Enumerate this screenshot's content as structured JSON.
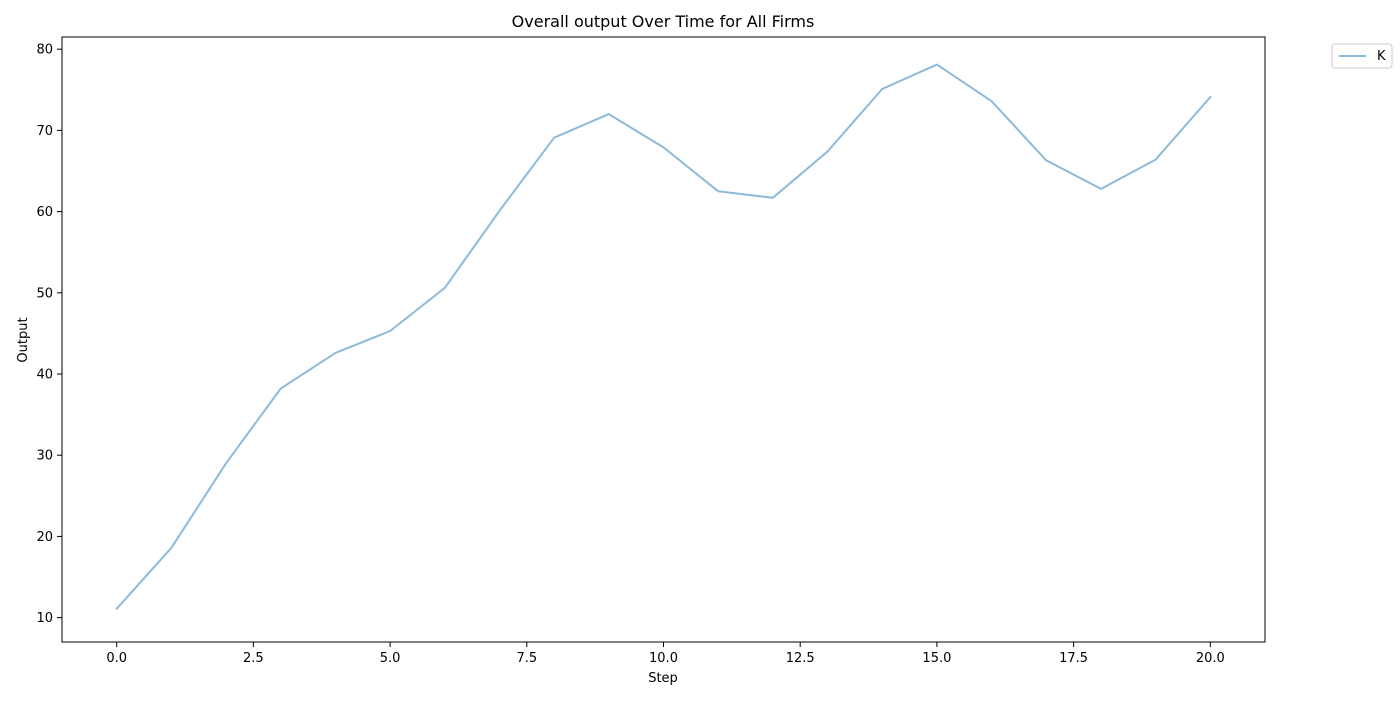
{
  "chart_data": {
    "type": "line",
    "title": "Overall output Over Time for All Firms",
    "xlabel": "Step",
    "ylabel": "Output",
    "xlim": [
      -1.0,
      21.0
    ],
    "ylim": [
      7.0,
      81.5
    ],
    "xticks": [
      0.0,
      2.5,
      5.0,
      7.5,
      10.0,
      12.5,
      15.0,
      17.5,
      20.0
    ],
    "xtick_labels": [
      "0.0",
      "2.5",
      "5.0",
      "7.5",
      "10.0",
      "12.5",
      "15.0",
      "17.5",
      "20.0"
    ],
    "yticks": [
      10,
      20,
      30,
      40,
      50,
      60,
      70,
      80
    ],
    "ytick_labels": [
      "10",
      "20",
      "30",
      "40",
      "50",
      "60",
      "70",
      "80"
    ],
    "grid": false,
    "legend_position": "outside-top-right",
    "series": [
      {
        "name": "K",
        "color": "#8cbad9",
        "x": [
          0,
          1,
          2,
          3,
          4,
          5,
          6,
          7,
          8,
          9,
          10,
          11,
          12,
          13,
          14,
          15,
          16,
          17,
          18,
          19,
          20
        ],
        "y": [
          11.1,
          18.6,
          29.0,
          38.2,
          42.6,
          45.3,
          50.6,
          60.1,
          69.1,
          72.0,
          67.9,
          62.5,
          61.7,
          67.4,
          75.1,
          78.1,
          73.6,
          66.3,
          62.8,
          66.4,
          74.1
        ]
      }
    ]
  }
}
